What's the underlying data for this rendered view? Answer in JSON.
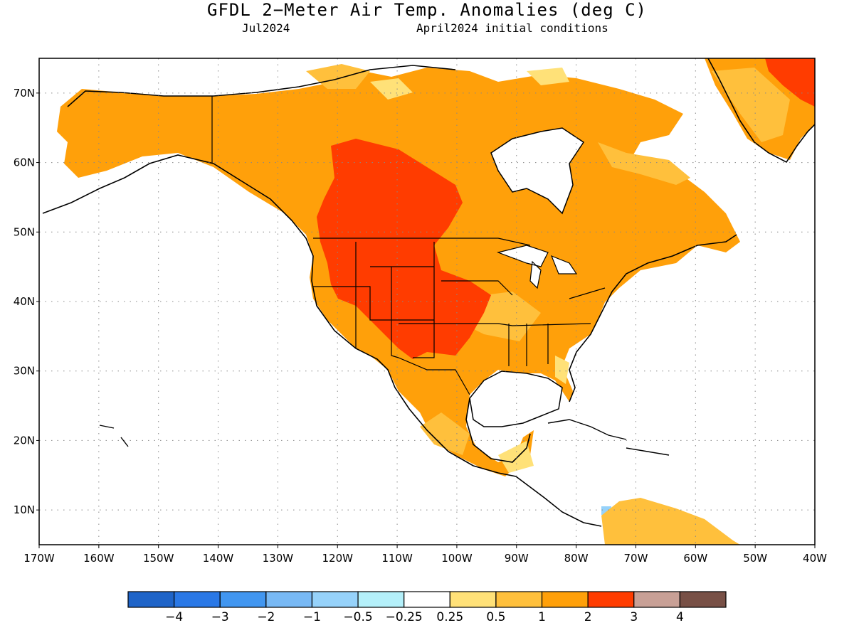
{
  "title": "GFDL 2−Meter Air Temp. Anomalies (deg C)",
  "subtitle_left": "Jul2024",
  "subtitle_right": "April2024 initial conditions",
  "map": {
    "lon_range": [
      -170,
      -40
    ],
    "lat_range": [
      5,
      75
    ],
    "lat_labels": [
      "10N",
      "20N",
      "30N",
      "40N",
      "50N",
      "60N",
      "70N"
    ],
    "lon_labels": [
      "170W",
      "160W",
      "150W",
      "140W",
      "130W",
      "120W",
      "110W",
      "100W",
      "90W",
      "80W",
      "70W",
      "60W",
      "50W",
      "40W"
    ],
    "grid": "dotted"
  },
  "colorbar": {
    "labels": [
      "−4",
      "−3",
      "−2",
      "−1",
      "−0.5",
      "−0.25",
      "0.25",
      "0.5",
      "1",
      "2",
      "3",
      "4"
    ],
    "colors": [
      "#1f64c8",
      "#2a78e6",
      "#4196f0",
      "#78b9f5",
      "#96d2fa",
      "#b4f0fa",
      "#ffffff",
      "#ffe178",
      "#ffc03c",
      "#ffa00a",
      "#ff3c00",
      "#c8a096",
      "#785046"
    ]
  },
  "anomaly_colors": {
    "weak_warm": "#ffe178",
    "warm": "#ffc03c",
    "warmer": "#ffa00a",
    "hot": "#ff3c00",
    "cool": "#96d2fa"
  }
}
